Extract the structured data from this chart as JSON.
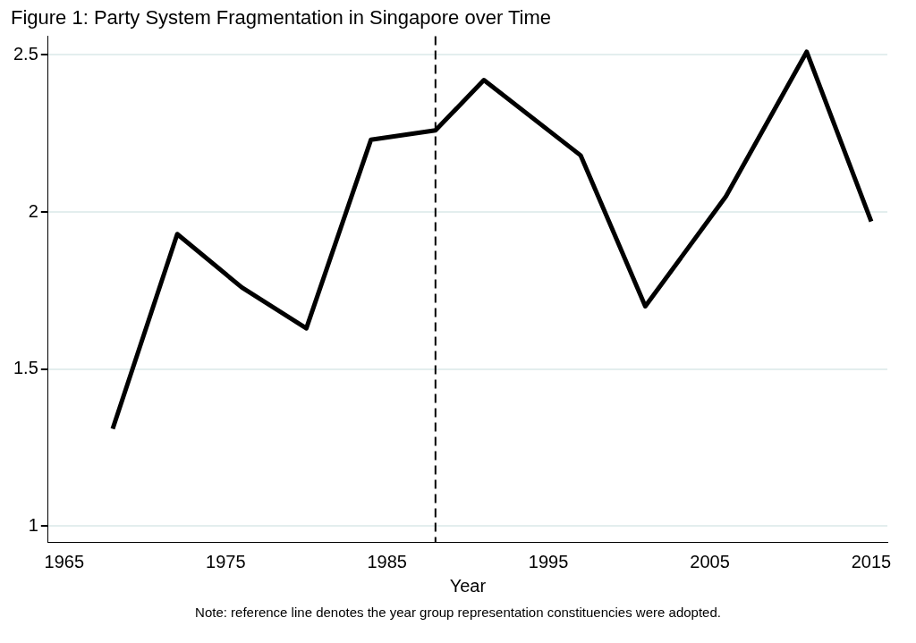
{
  "chart_data": {
    "type": "line",
    "title": "Figure 1: Party System Fragmentation in Singapore over Time",
    "xlabel": "Year",
    "x": [
      1968,
      1972,
      1976,
      1980,
      1984,
      1988,
      1991,
      1997,
      2001,
      2006,
      2011,
      2015
    ],
    "series": [
      {
        "color": "#000000",
        "values": [
          1.31,
          1.93,
          1.76,
          1.63,
          2.23,
          2.26,
          2.42,
          2.18,
          1.7,
          2.05,
          2.51,
          1.97
        ]
      }
    ],
    "xlim": [
      1964,
      2016
    ],
    "xticks": [
      1965,
      1975,
      1985,
      1995,
      2005,
      2015
    ],
    "ylim": [
      0.95,
      2.56
    ],
    "yticks": [
      1,
      1.5,
      2,
      2.5
    ],
    "grid": "y",
    "legend": false,
    "marker": "none",
    "line_style": "solid",
    "ref_lines": [
      {
        "axis": "x",
        "value": 1988,
        "line_style": "dashed",
        "color": "#000000"
      }
    ],
    "annotations": [
      "Note: reference line denotes the year group representation constituencies were adopted."
    ]
  }
}
